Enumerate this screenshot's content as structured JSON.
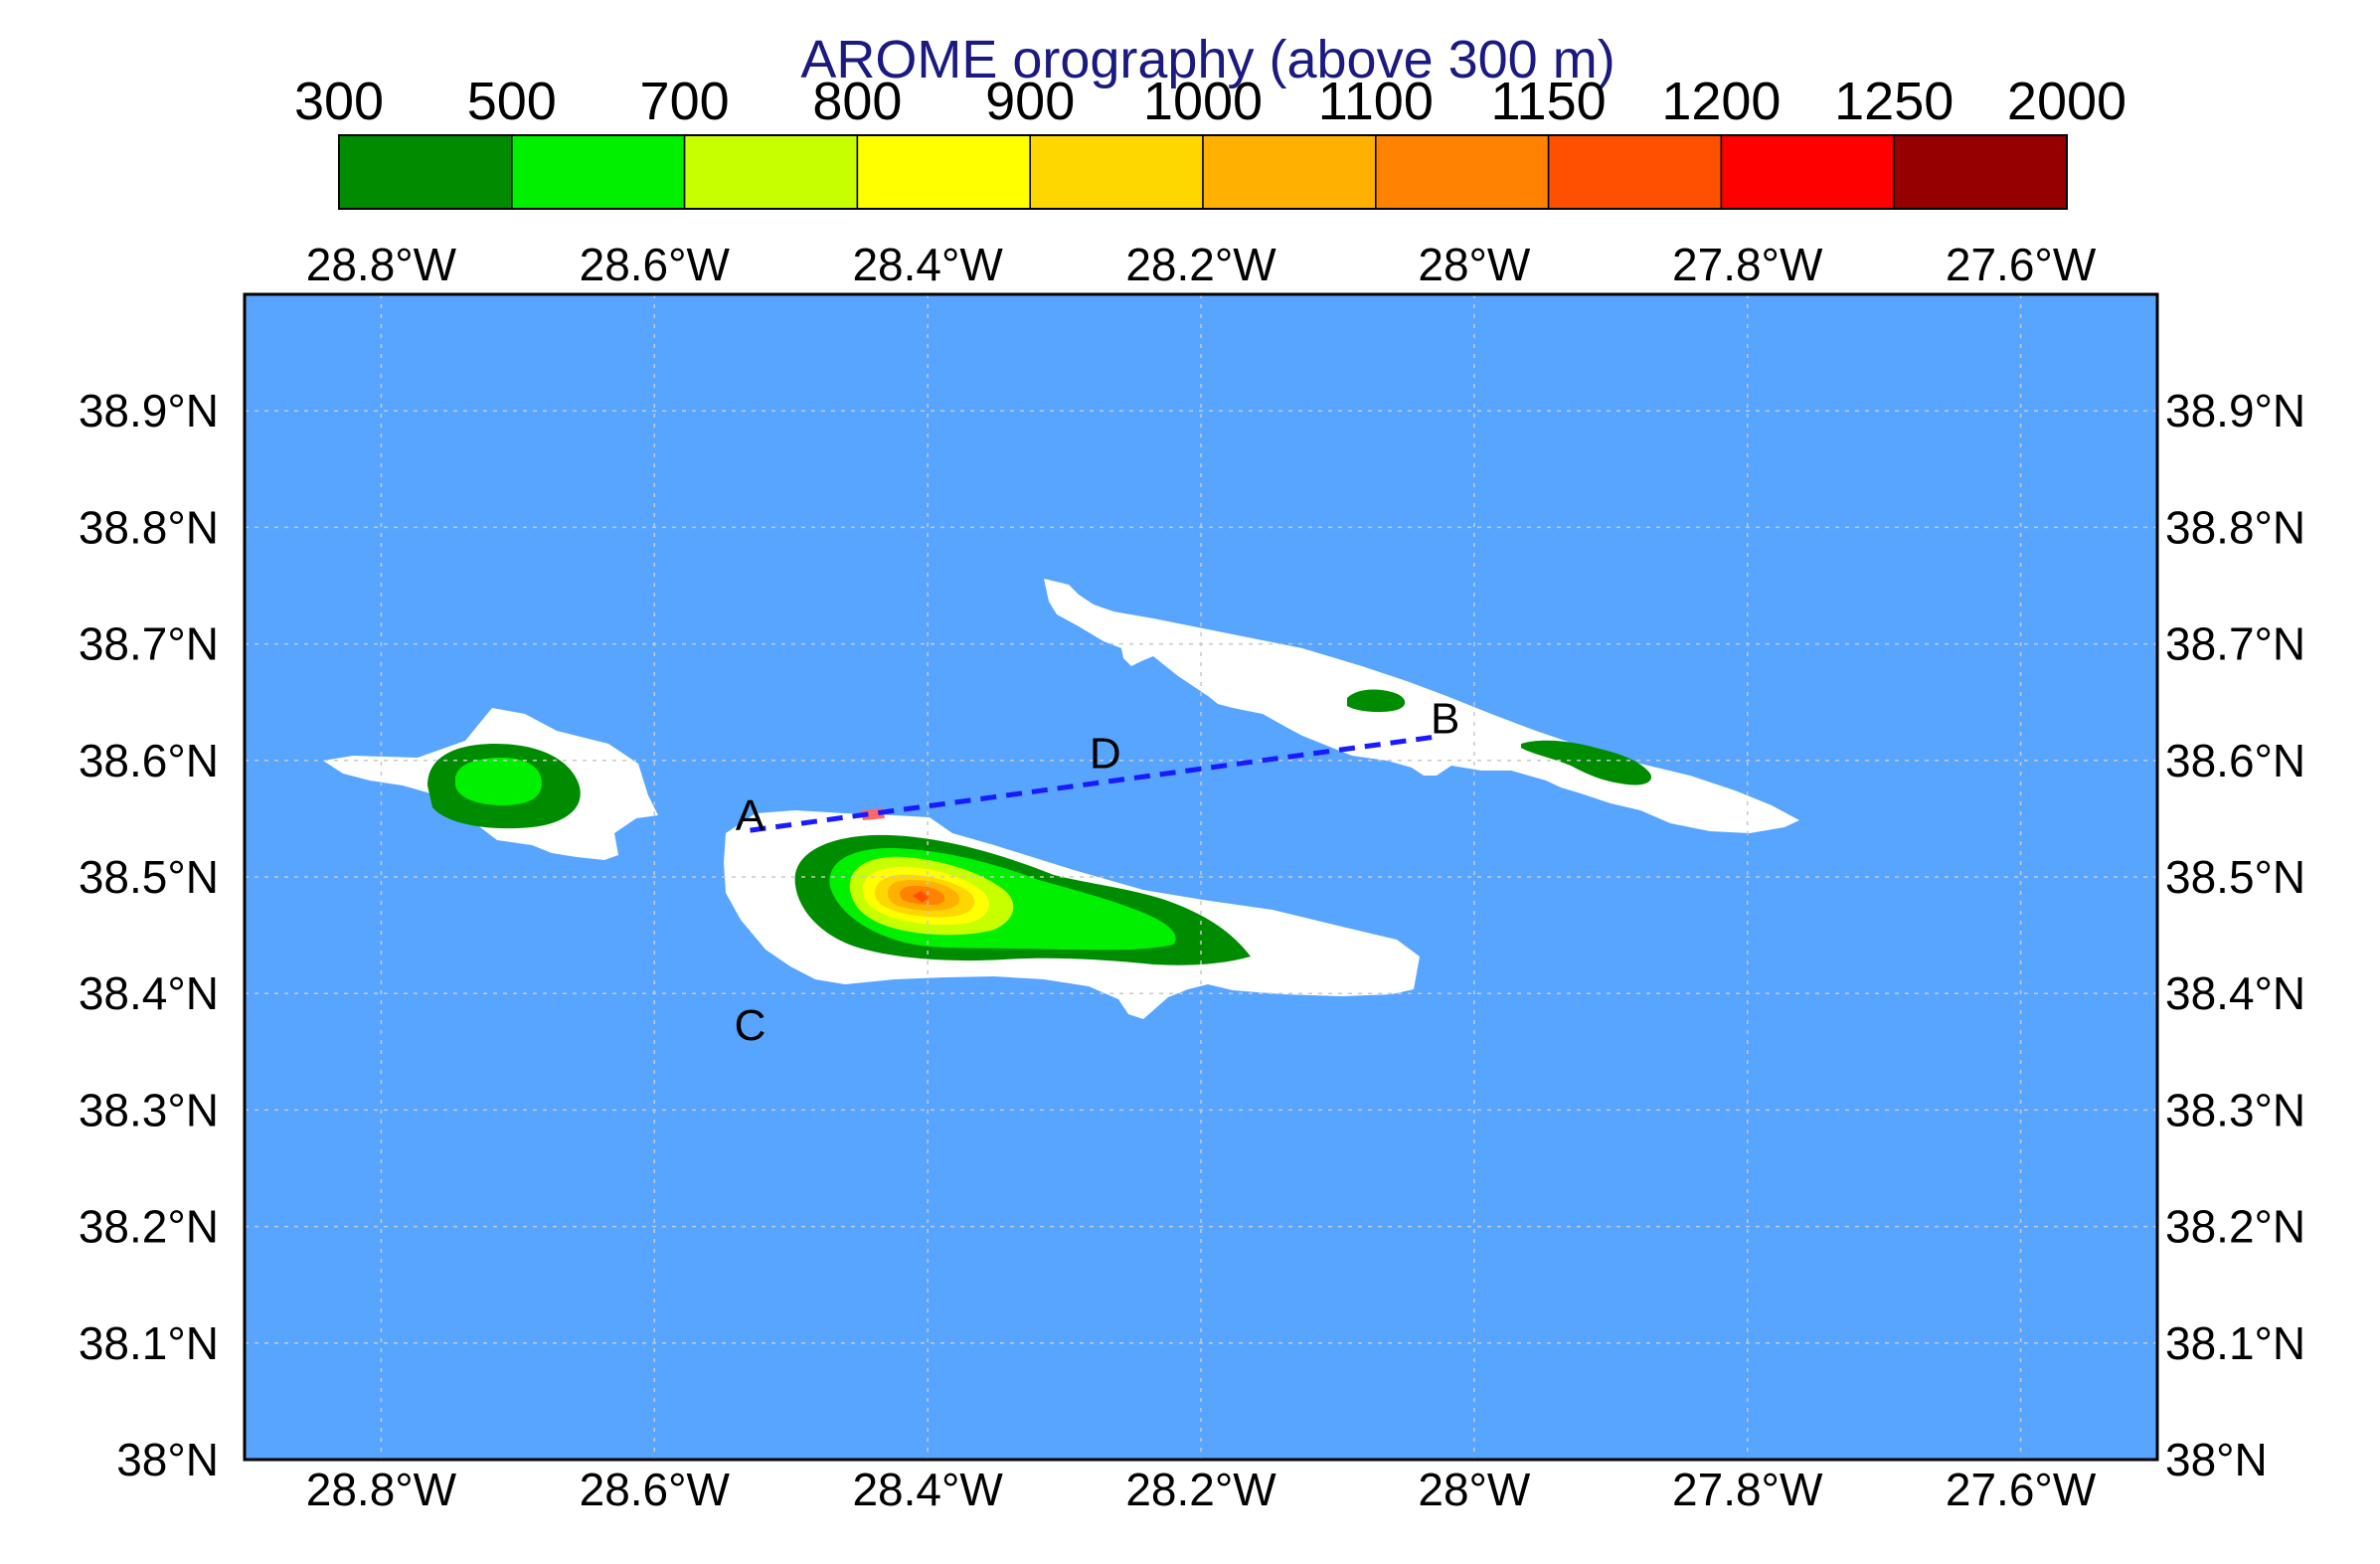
{
  "title": "AROME orography (above 300 m)",
  "colorbar": {
    "levels": [
      "300",
      "500",
      "700",
      "800",
      "900",
      "1000",
      "1100",
      "1150",
      "1200",
      "1250",
      "2000"
    ],
    "colors": [
      "#008c00",
      "#00f000",
      "#c8ff00",
      "#ffff00",
      "#ffd700",
      "#ffb000",
      "#ff8200",
      "#ff5000",
      "#ff0000",
      "#960000"
    ]
  },
  "map": {
    "ocean_color": "#57a5ff",
    "land_color": "#ffffff",
    "lon_range": [
      -28.9,
      -27.5
    ],
    "lat_range": [
      38.0,
      39.0
    ],
    "grid": true,
    "lon_ticks": [
      -28.8,
      -28.6,
      -28.4,
      -28.2,
      -28.0,
      -27.8,
      -27.6
    ],
    "lat_ticks": [
      38.0,
      38.1,
      38.2,
      38.3,
      38.4,
      38.5,
      38.6,
      38.7,
      38.8,
      38.9
    ],
    "lon_tick_labels": [
      "28.8°W",
      "28.6°W",
      "28.4°W",
      "28.2°W",
      "28°W",
      "27.8°W",
      "27.6°W"
    ],
    "lat_tick_labels": [
      "38°N",
      "38.1°N",
      "38.2°N",
      "38.3°N",
      "38.4°N",
      "38.5°N",
      "38.6°N",
      "38.7°N",
      "38.8°N",
      "38.9°N"
    ]
  },
  "points": [
    {
      "label": "A",
      "lon": -28.53,
      "lat": 38.54
    },
    {
      "label": "B",
      "lon": -28.03,
      "lat": 38.62
    },
    {
      "label": "C",
      "lon": -28.53,
      "lat": 38.36
    },
    {
      "label": "D",
      "lon": -28.27,
      "lat": 38.59
    }
  ],
  "section_line": {
    "from": "A",
    "to": "B",
    "color": "#1a1aff"
  }
}
